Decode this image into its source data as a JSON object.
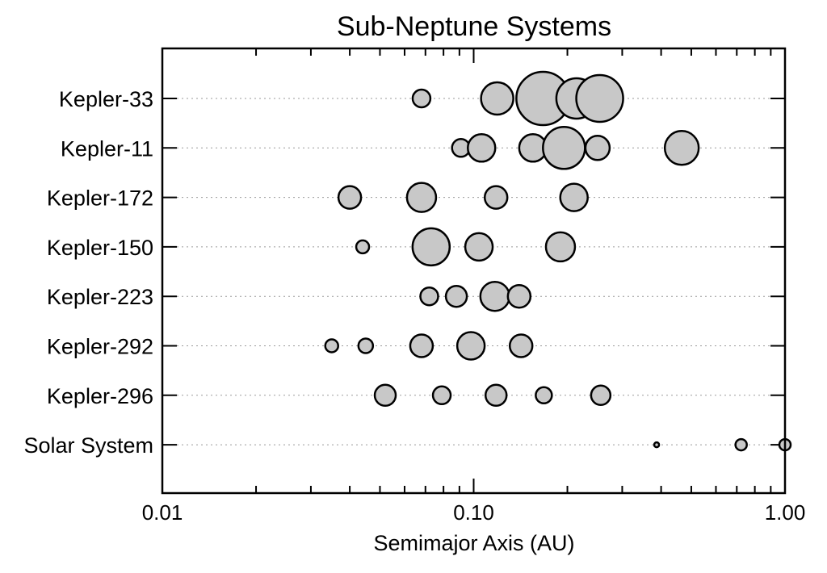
{
  "chart_data": {
    "type": "scatter",
    "title": "Sub-Neptune Systems",
    "xlabel": "Semimajor Axis (AU)",
    "ylabel": "",
    "x_scale": "log",
    "xlim": [
      0.01,
      1.0
    ],
    "x_ticks": [
      {
        "value": 0.01,
        "label": "0.01"
      },
      {
        "value": 0.1,
        "label": "0.10"
      },
      {
        "value": 1.0,
        "label": "1.00"
      }
    ],
    "grid": "horizontal dotted",
    "marker_color": "#c8c8c8",
    "marker_edge_color": "#000000",
    "systems": [
      {
        "name": "Kepler-33",
        "planets": [
          {
            "a": 0.068,
            "r": 11
          },
          {
            "a": 0.119,
            "r": 20
          },
          {
            "a": 0.167,
            "r": 33
          },
          {
            "a": 0.214,
            "r": 25
          },
          {
            "a": 0.254,
            "r": 29
          }
        ]
      },
      {
        "name": "Kepler-11",
        "planets": [
          {
            "a": 0.091,
            "r": 11
          },
          {
            "a": 0.106,
            "r": 17
          },
          {
            "a": 0.155,
            "r": 17
          },
          {
            "a": 0.195,
            "r": 26
          },
          {
            "a": 0.25,
            "r": 15
          },
          {
            "a": 0.466,
            "r": 21
          }
        ]
      },
      {
        "name": "Kepler-172",
        "planets": [
          {
            "a": 0.04,
            "r": 14
          },
          {
            "a": 0.068,
            "r": 18
          },
          {
            "a": 0.118,
            "r": 14
          },
          {
            "a": 0.21,
            "r": 17
          }
        ]
      },
      {
        "name": "Kepler-150",
        "planets": [
          {
            "a": 0.044,
            "r": 8
          },
          {
            "a": 0.073,
            "r": 23
          },
          {
            "a": 0.104,
            "r": 17
          },
          {
            "a": 0.19,
            "r": 18
          }
        ]
      },
      {
        "name": "Kepler-223",
        "planets": [
          {
            "a": 0.072,
            "r": 11
          },
          {
            "a": 0.088,
            "r": 13
          },
          {
            "a": 0.117,
            "r": 18
          },
          {
            "a": 0.14,
            "r": 14
          }
        ]
      },
      {
        "name": "Kepler-292",
        "planets": [
          {
            "a": 0.035,
            "r": 8
          },
          {
            "a": 0.045,
            "r": 9
          },
          {
            "a": 0.068,
            "r": 14
          },
          {
            "a": 0.098,
            "r": 17
          },
          {
            "a": 0.142,
            "r": 14
          }
        ]
      },
      {
        "name": "Kepler-296",
        "planets": [
          {
            "a": 0.052,
            "r": 13
          },
          {
            "a": 0.079,
            "r": 11
          },
          {
            "a": 0.118,
            "r": 13
          },
          {
            "a": 0.168,
            "r": 10
          },
          {
            "a": 0.256,
            "r": 12
          }
        ]
      },
      {
        "name": "Solar System",
        "planets": [
          {
            "a": 0.387,
            "r": 3
          },
          {
            "a": 0.723,
            "r": 7
          },
          {
            "a": 1.0,
            "r": 7
          }
        ]
      }
    ]
  }
}
